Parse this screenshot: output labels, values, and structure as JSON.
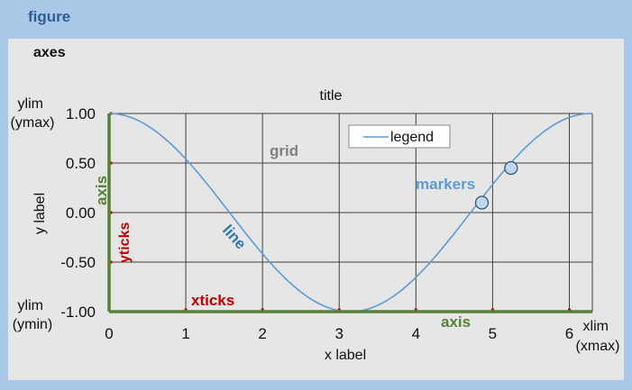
{
  "figure_label": "figure",
  "axes_label": "axes",
  "title": "title",
  "legend_label": "legend",
  "annotations": {
    "grid": "grid",
    "markers": "markers",
    "line": "line",
    "xticks": "xticks",
    "yticks": "yticks",
    "axis_bottom": "axis",
    "axis_left": "axis",
    "ylim_top": [
      "ylim",
      "(ymax)"
    ],
    "ylim_bottom": [
      "ylim",
      "(ymin)"
    ],
    "xlim": [
      "xlim",
      "(xmax)"
    ]
  },
  "colors": {
    "figure_bg": "#a9c8e8",
    "axes_bg": "#e7e6e6",
    "line": "#5b9bd5",
    "axis": "#548235",
    "ticks": "#c00000",
    "grid": "#404040",
    "marker_fill": "#bdd7ee",
    "figure_text": "#2f5e94"
  },
  "chart_data": {
    "type": "line",
    "title": "title",
    "xlabel": "x label",
    "ylabel": "y label",
    "xlim": [
      0,
      6.3
    ],
    "ylim": [
      -1.0,
      1.0
    ],
    "xticks": [
      0,
      1,
      2,
      3,
      4,
      5,
      6
    ],
    "yticks": [
      1.0,
      0.5,
      0.0,
      -0.5,
      -1.0
    ],
    "ytick_labels": [
      "1.00",
      "0.50",
      "0.00",
      "-0.50",
      "-1.00"
    ],
    "grid": true,
    "legend_placement": "top-center",
    "series": [
      {
        "name": "legend",
        "function": "cos",
        "x_range": [
          0,
          6.3
        ],
        "markers": [
          {
            "x": 4.86,
            "y": 0.1
          },
          {
            "x": 5.24,
            "y": 0.45
          }
        ]
      }
    ]
  }
}
